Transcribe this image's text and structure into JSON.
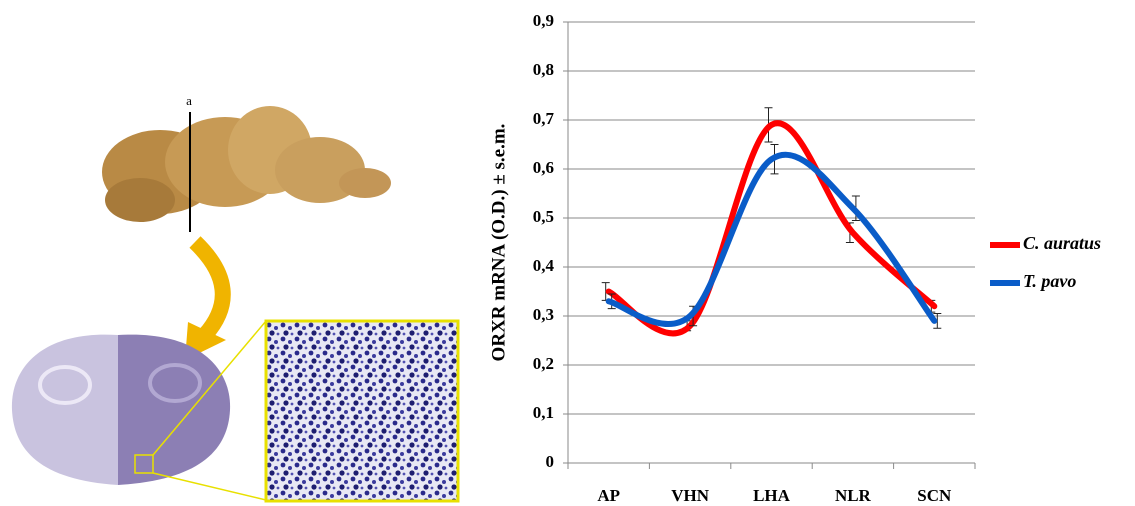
{
  "figure": {
    "section_label": "a"
  },
  "chart_data": {
    "type": "line",
    "y_label": "ORXR mRNA (O.D.) ± s.e.m.",
    "categories": [
      "AP",
      "VHN",
      "LHA",
      "NLR",
      "SCN"
    ],
    "ylim": [
      0,
      0.9
    ],
    "yticks": [
      0,
      {
        "value": 0.1,
        "label": "0,1"
      },
      {
        "value": 0.2,
        "label": "0,2"
      },
      {
        "value": 0.3,
        "label": "0,3"
      },
      {
        "value": 0.4,
        "label": "0,4"
      },
      {
        "value": 0.5,
        "label": "0,5"
      },
      {
        "value": 0.6,
        "label": "0,6"
      },
      {
        "value": 0.7,
        "label": "0,7"
      },
      {
        "value": 0.8,
        "label": "0,8"
      },
      {
        "value": 0.9,
        "label": "0,9"
      }
    ],
    "grid": true,
    "smooth": true,
    "legend": "right",
    "series": [
      {
        "name": "C. auratus",
        "color": "#ff0000",
        "values": [
          0.35,
          0.28,
          0.69,
          0.47,
          0.32
        ],
        "errors": [
          0.018,
          0.01,
          0.035,
          0.02,
          0.012
        ]
      },
      {
        "name": "T. pavo",
        "color": "#0a5cc8",
        "values": [
          0.33,
          0.3,
          0.62,
          0.52,
          0.29
        ],
        "errors": [
          0.015,
          0.02,
          0.03,
          0.025,
          0.015
        ]
      }
    ]
  }
}
